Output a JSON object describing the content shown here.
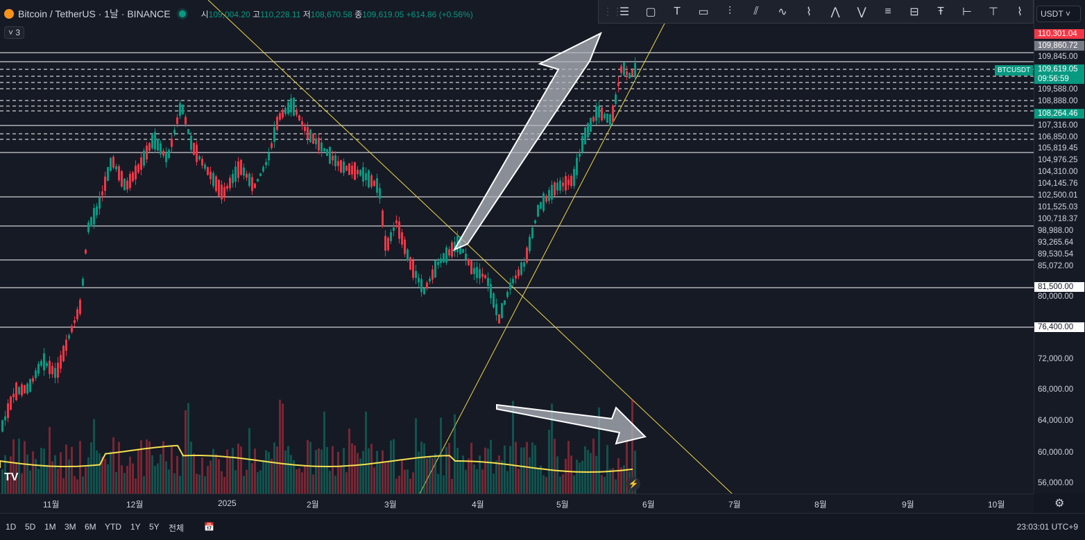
{
  "legend": {
    "title": "Bitcoin / TetherUS · 1날 · BINANCE",
    "open_label": "시",
    "open": "109,004.20",
    "high_label": "고",
    "high": "110,228.11",
    "low_label": "저",
    "low": "108,670.58",
    "close_label": "종",
    "close": "109,619.05",
    "change": "+614.86 (+0.56%)",
    "indicator_count": "3"
  },
  "toolbar": {
    "currency": "USDT",
    "tools": [
      "horizontal-lines-icon",
      "rectangle-icon",
      "text-icon",
      "callout-icon",
      "fib-icon",
      "parallel-channel-icon",
      "curve-icon",
      "path-icon",
      "elliott-icon",
      "abcd-icon",
      "pattern-icon",
      "long-position-icon",
      "text-note-icon",
      "date-range-icon",
      "anchor-text-icon",
      "trend-icon"
    ]
  },
  "symbol_tag": "BTCUSDT",
  "price_scale": {
    "labels": [
      "109,845.00",
      "109,588.00",
      "108,888.00",
      "107,316.00",
      "106,850.00",
      "105,819.45",
      "104,976.25",
      "104,310.00",
      "104,145.76",
      "102,500.01",
      "101,525.03",
      "100,718.37",
      "98,988.00",
      "93,265.64",
      "89,530.54",
      "85,072.00",
      "80,000.00",
      "72,000.00",
      "68,000.00",
      "64,000.00",
      "60,000.00",
      "56,000.00"
    ],
    "tags": {
      "high_price": "110,301.04",
      "prev_close": "109,860.72",
      "last_price": "109,619.05",
      "countdown": "09:56:59",
      "green_level": "108,264.46",
      "level_81500": "81,500.00",
      "level_76400": "76,400.00"
    },
    "tag_colors": {
      "high": "#f23645",
      "prev": "#787b86",
      "last": "#089981",
      "green": "#089981",
      "white": "#ffffff"
    }
  },
  "time_axis": [
    "11월",
    "12월",
    "2025",
    "2월",
    "3월",
    "4월",
    "5월",
    "6월",
    "7월",
    "8월",
    "9월",
    "10월"
  ],
  "timeframes": [
    "1D",
    "5D",
    "1M",
    "3M",
    "6M",
    "YTD",
    "1Y",
    "5Y",
    "전체"
  ],
  "clock": "23:03:01 UTC+9",
  "colors": {
    "up": "#089981",
    "down": "#f23645",
    "trendline": "#f0d84a",
    "arrow": "#b2b5be",
    "hline": "#ffffff",
    "ma": "#f5e050"
  }
}
